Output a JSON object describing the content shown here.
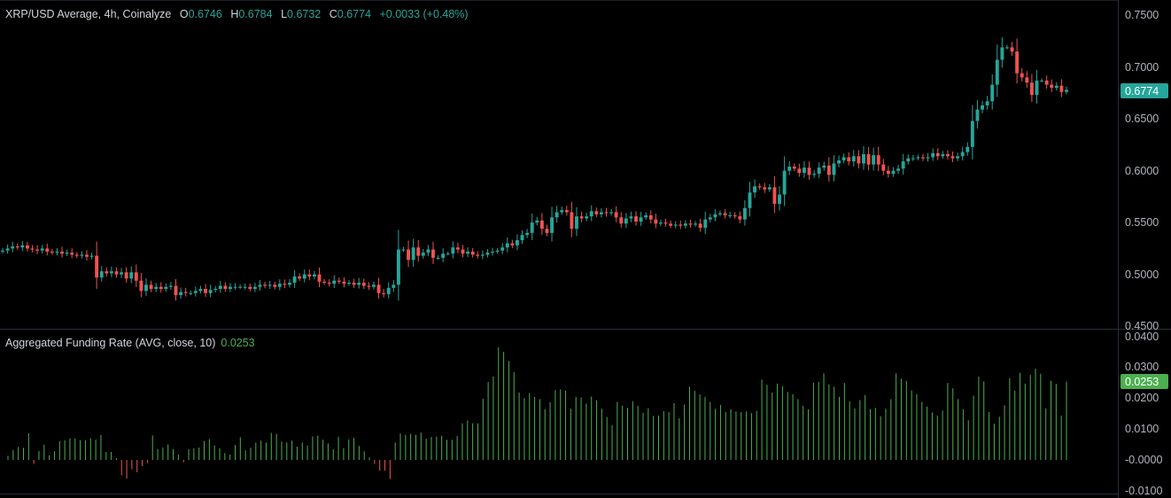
{
  "legend_top": {
    "symbol": "XRP/USD Average, 4h, Coinalyze",
    "o_label": "O",
    "o_value": "0.6746",
    "h_label": "H",
    "h_value": "0.6784",
    "l_label": "L",
    "l_value": "0.6732",
    "c_label": "C",
    "c_value": "0.6774",
    "change": "+0.0033 (+0.48%)"
  },
  "legend_bottom": {
    "title": "Aggregated Funding Rate (AVG, close, 10)",
    "value": "0.0253"
  },
  "colors": {
    "up": "#26a69a",
    "down": "#ef5350",
    "funding_pos": "#4caf50",
    "funding_neg": "#ef5350",
    "price_badge": "#26a69a",
    "funding_badge": "#4caf50",
    "grid_line": "#2a2e39"
  },
  "chart_data": [
    {
      "type": "candlestick",
      "title": "XRP/USD Average, 4h, Coinalyze",
      "current_price": "0.6774",
      "y_ticks": [
        "0.7500",
        "0.7000",
        "0.6500",
        "0.6000",
        "0.5500",
        "0.5000",
        "0.4500"
      ],
      "ylim": [
        0.45,
        0.75
      ],
      "closes": [
        0.522,
        0.524,
        0.526,
        0.525,
        0.527,
        0.524,
        0.523,
        0.522,
        0.524,
        0.521,
        0.52,
        0.521,
        0.519,
        0.52,
        0.518,
        0.517,
        0.518,
        0.516,
        0.517,
        0.496,
        0.502,
        0.5,
        0.502,
        0.499,
        0.501,
        0.495,
        0.501,
        0.493,
        0.483,
        0.489,
        0.485,
        0.487,
        0.485,
        0.487,
        0.488,
        0.479,
        0.482,
        0.481,
        0.481,
        0.483,
        0.485,
        0.481,
        0.484,
        0.485,
        0.488,
        0.485,
        0.487,
        0.487,
        0.487,
        0.487,
        0.485,
        0.487,
        0.489,
        0.488,
        0.489,
        0.487,
        0.49,
        0.489,
        0.491,
        0.497,
        0.495,
        0.499,
        0.497,
        0.499,
        0.492,
        0.491,
        0.49,
        0.493,
        0.492,
        0.49,
        0.491,
        0.489,
        0.491,
        0.488,
        0.487,
        0.489,
        0.481,
        0.48,
        0.486,
        0.489,
        0.523,
        0.523,
        0.513,
        0.525,
        0.517,
        0.52,
        0.523,
        0.515,
        0.515,
        0.519,
        0.519,
        0.525,
        0.523,
        0.519,
        0.521,
        0.518,
        0.517,
        0.518,
        0.52,
        0.521,
        0.522,
        0.525,
        0.529,
        0.527,
        0.532,
        0.537,
        0.539,
        0.549,
        0.551,
        0.543,
        0.539,
        0.554,
        0.559,
        0.561,
        0.559,
        0.543,
        0.555,
        0.553,
        0.555,
        0.56,
        0.557,
        0.559,
        0.558,
        0.559,
        0.554,
        0.548,
        0.553,
        0.555,
        0.55,
        0.554,
        0.556,
        0.552,
        0.548,
        0.549,
        0.548,
        0.546,
        0.547,
        0.546,
        0.548,
        0.547,
        0.548,
        0.544,
        0.552,
        0.554,
        0.557,
        0.558,
        0.556,
        0.556,
        0.555,
        0.552,
        0.563,
        0.578,
        0.584,
        0.583,
        0.581,
        0.583,
        0.567,
        0.576,
        0.599,
        0.603,
        0.601,
        0.597,
        0.602,
        0.595,
        0.596,
        0.602,
        0.604,
        0.595,
        0.606,
        0.609,
        0.612,
        0.608,
        0.613,
        0.606,
        0.615,
        0.605,
        0.614,
        0.605,
        0.599,
        0.596,
        0.599,
        0.601,
        0.608,
        0.611,
        0.611,
        0.612,
        0.611,
        0.612,
        0.616,
        0.613,
        0.615,
        0.613,
        0.611,
        0.613,
        0.617,
        0.622,
        0.647,
        0.658,
        0.662,
        0.666,
        0.682,
        0.706,
        0.718,
        0.718,
        0.714,
        0.693,
        0.689,
        0.684,
        0.672,
        0.686,
        0.686,
        0.682,
        0.679,
        0.681,
        0.675,
        0.677
      ]
    },
    {
      "type": "bar",
      "title": "Aggregated Funding Rate (AVG, close, 10)",
      "current_value": "0.0253",
      "y_ticks": [
        "0.0400",
        "0.0300",
        "0.0200",
        "0.0100",
        "-0.0000",
        "-0.0100"
      ],
      "ylim": [
        -0.01,
        0.04
      ],
      "values": [
        0.0013,
        0.0032,
        0.0042,
        0.0039,
        0.0086,
        -0.0013,
        0.0029,
        0.0049,
        0.0015,
        0.0028,
        0.006,
        0.0063,
        0.0069,
        0.0069,
        0.0064,
        0.0063,
        0.007,
        0.0065,
        0.0081,
        0.0025,
        0.0026,
        0.0006,
        -0.005,
        -0.006,
        -0.003,
        -0.004,
        -0.002,
        -0.001,
        0.0079,
        0.0035,
        0.004,
        0.005,
        0.0035,
        0.0018,
        -0.0008,
        0.0035,
        0.0037,
        0.004,
        0.0061,
        0.0067,
        0.0047,
        0.0037,
        0.0022,
        0.0017,
        0.0048,
        0.0073,
        0.0031,
        0.0039,
        0.0056,
        0.0062,
        0.0056,
        0.0087,
        0.0084,
        0.0059,
        0.0056,
        0.0062,
        0.0043,
        0.0056,
        0.0046,
        0.0076,
        0.0078,
        0.0065,
        0.0053,
        0.0034,
        0.0074,
        0.0038,
        0.0066,
        0.0071,
        0.0045,
        0.0028,
        0.0008,
        -0.0013,
        -0.0035,
        -0.0035,
        -0.0062,
        0.0056,
        0.0085,
        0.0081,
        0.0084,
        0.0081,
        0.0088,
        0.0068,
        0.0074,
        0.0075,
        0.0078,
        0.0065,
        0.0065,
        0.0077,
        0.0118,
        0.0127,
        0.0118,
        0.0118,
        0.0197,
        0.0251,
        0.0269,
        0.0363,
        0.0348,
        0.0319,
        0.0283,
        0.0217,
        0.0199,
        0.0216,
        0.0203,
        0.0196,
        0.0163,
        0.0186,
        0.0225,
        0.0227,
        0.0223,
        0.0165,
        0.0203,
        0.0201,
        0.0182,
        0.0204,
        0.0192,
        0.0165,
        0.0138,
        0.0112,
        0.0187,
        0.0175,
        0.0168,
        0.0189,
        0.0174,
        0.0152,
        0.0167,
        0.0142,
        0.0143,
        0.0157,
        0.0154,
        0.0183,
        0.0134,
        0.0179,
        0.0236,
        0.0223,
        0.0211,
        0.0203,
        0.0187,
        0.0165,
        0.0177,
        0.0154,
        0.0163,
        0.0156,
        0.0154,
        0.0156,
        0.0151,
        0.0158,
        0.0259,
        0.0242,
        0.0217,
        0.0246,
        0.0238,
        0.0219,
        0.0212,
        0.0196,
        0.0174,
        0.0163,
        0.0249,
        0.0252,
        0.0279,
        0.0243,
        0.0236,
        0.0203,
        0.0248,
        0.0189,
        0.0166,
        0.0193,
        0.0209,
        0.0164,
        0.0168,
        0.0141,
        0.0165,
        0.0196,
        0.0279,
        0.0262,
        0.0255,
        0.0224,
        0.0212,
        0.0187,
        0.0172,
        0.0153,
        0.0143,
        0.0159,
        0.0248,
        0.0231,
        0.0196,
        0.0164,
        0.0128,
        0.0207,
        0.0269,
        0.0253,
        0.0154,
        0.0117,
        0.0139,
        0.0176,
        0.0264,
        0.0223,
        0.0281,
        0.0246,
        0.0274,
        0.0294,
        0.0278,
        0.0166,
        0.0255,
        0.0245,
        0.0143,
        0.0253
      ]
    }
  ]
}
